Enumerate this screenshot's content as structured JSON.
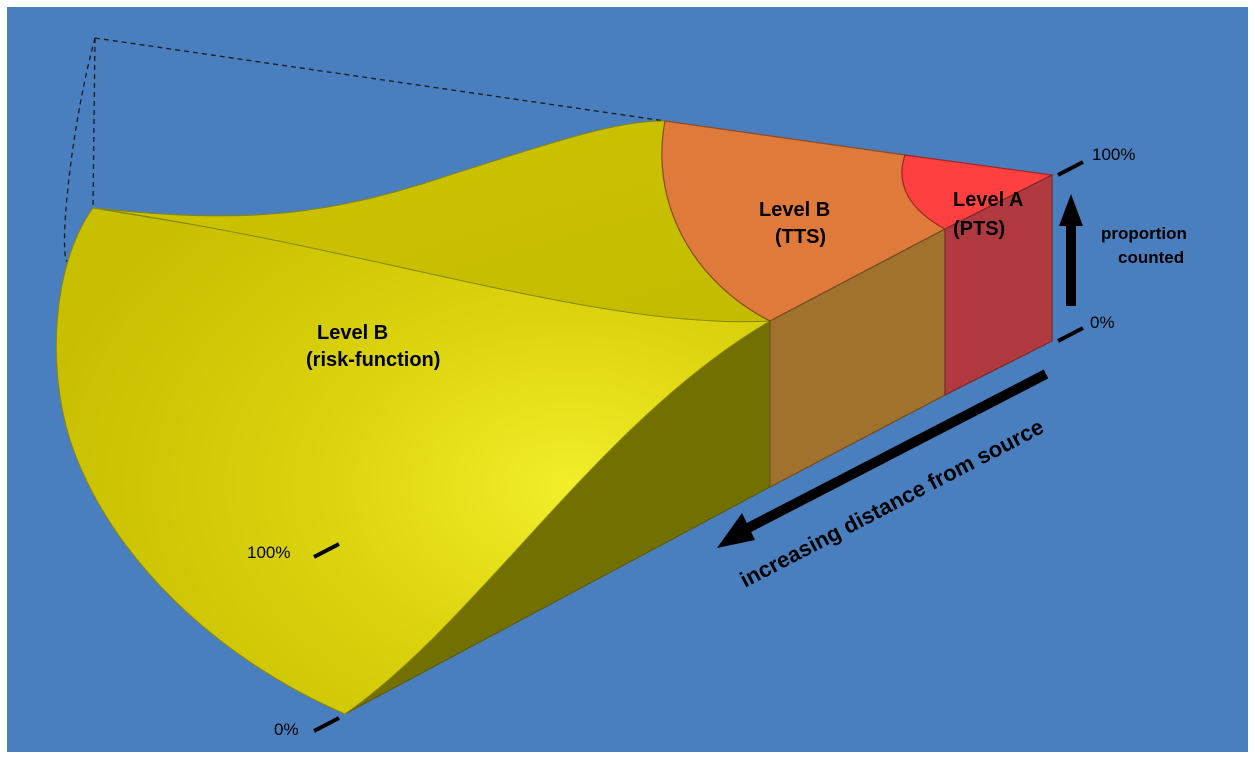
{
  "colors": {
    "background": "#4a7fbf",
    "frame": "#ffffff",
    "risk_function_top": "#c8c000",
    "risk_function_side": "#d8d000",
    "risk_function_shadow": "#727000",
    "tts_top": "#e07a3a",
    "tts_side": "#a0722e",
    "pts_top": "#ff4040",
    "pts_side": "#b03a40",
    "text": "#000000",
    "arrow": "#000000"
  },
  "zones": [
    {
      "name": "Level B",
      "method": "(risk-function)"
    },
    {
      "name": "Level B",
      "method": "(TTS)"
    },
    {
      "name": "Level A",
      "method": "(PTS)"
    }
  ],
  "right_axis": {
    "top_tick": "100%",
    "bottom_tick": "0%",
    "label_line1": "proportion",
    "label_line2": "counted",
    "arrow_icon": "up-arrow-icon"
  },
  "left_axis": {
    "top_tick": "100%",
    "bottom_tick": "0%"
  },
  "distance_axis": {
    "label": "increasing distance from source",
    "arrow_icon": "down-left-arrow-icon"
  }
}
